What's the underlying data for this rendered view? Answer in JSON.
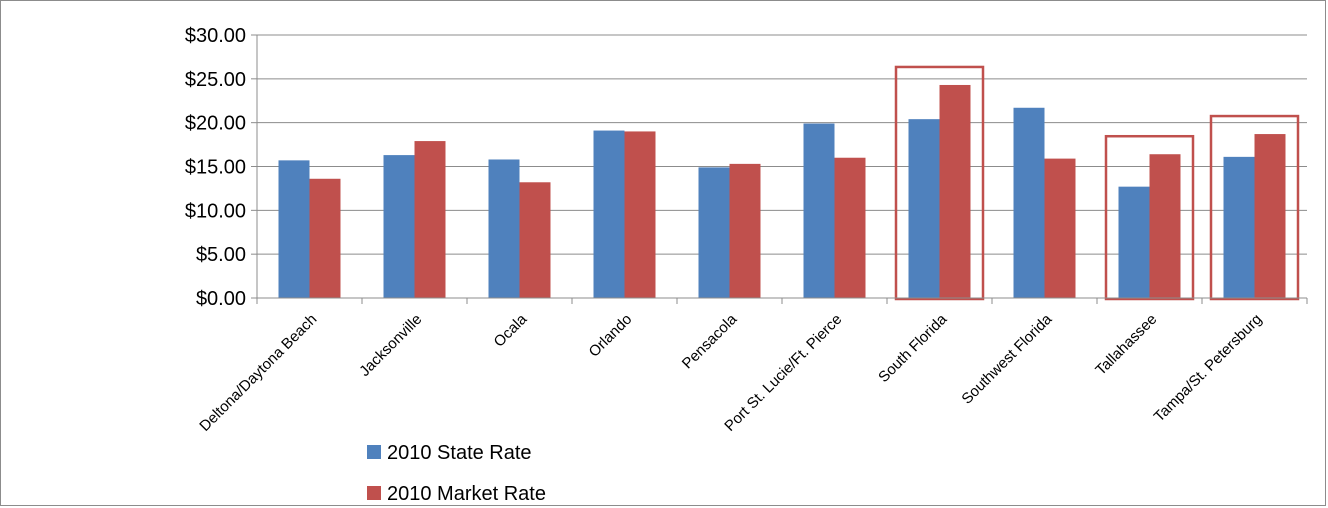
{
  "chart_data": {
    "type": "bar",
    "categories": [
      "Deltona/Daytona Beach",
      "Jacksonville",
      "Ocala",
      "Orlando",
      "Pensacola",
      "Port St. Lucie/Ft. Pierce",
      "South Florida",
      "Southwest Florida",
      "Tallahassee",
      "Tampa/St. Petersburg"
    ],
    "series": [
      {
        "name": "2010 State Rate",
        "color": "#4F81BD",
        "values": [
          15.7,
          16.3,
          15.8,
          19.1,
          14.9,
          19.9,
          20.4,
          21.7,
          12.7,
          16.1
        ]
      },
      {
        "name": "2010 Market Rate",
        "color": "#C0504D",
        "values": [
          13.6,
          17.9,
          13.2,
          19.0,
          15.3,
          16.0,
          24.3,
          15.9,
          16.4,
          18.7
        ]
      }
    ],
    "y_ticks": [
      "$0.00",
      "$5.00",
      "$10.00",
      "$15.00",
      "$20.00",
      "$25.00",
      "$30.00"
    ],
    "ylim": [
      0,
      30
    ],
    "ystep": 5,
    "grid": true,
    "legend_position": "bottom-left",
    "highlighted_categories": [
      "South Florida",
      "Tallahassee",
      "Tampa/St. Petersburg"
    ],
    "highlight_color": "#C0504D"
  }
}
